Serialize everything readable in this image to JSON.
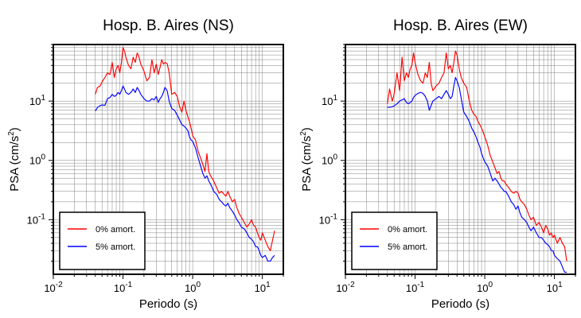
{
  "chart_data": [
    {
      "type": "line",
      "title": "Hosp. B. Aires (NS)",
      "xlabel": "Periodo (s)",
      "ylabel_main": "PSA (cm/s",
      "ylabel_sup": "2",
      "ylabel_close": ")",
      "xscale": "log",
      "yscale": "log",
      "xlim": [
        0.01,
        20
      ],
      "ylim": [
        0.012,
        90
      ],
      "grid": true,
      "legend_position": "bottom-left",
      "xtick_labels": [
        {
          "base": "10",
          "exp": "-2",
          "value": 0.01
        },
        {
          "base": "10",
          "exp": "-1",
          "value": 0.1
        },
        {
          "base": "10",
          "exp": "0",
          "value": 1
        },
        {
          "base": "10",
          "exp": "1",
          "value": 10
        }
      ],
      "ytick_labels": [
        {
          "base": "10",
          "exp": "-1",
          "value": 0.1
        },
        {
          "base": "10",
          "exp": "0",
          "value": 1
        },
        {
          "base": "10",
          "exp": "1",
          "value": 10
        }
      ],
      "series": [
        {
          "name": "0% amort.",
          "color": "#ff0000",
          "x": [
            0.04,
            0.043,
            0.047,
            0.05,
            0.055,
            0.06,
            0.065,
            0.07,
            0.075,
            0.08,
            0.085,
            0.09,
            0.095,
            0.1,
            0.105,
            0.11,
            0.12,
            0.13,
            0.14,
            0.15,
            0.16,
            0.17,
            0.18,
            0.2,
            0.22,
            0.24,
            0.26,
            0.28,
            0.3,
            0.32,
            0.34,
            0.36,
            0.38,
            0.4,
            0.43,
            0.46,
            0.5,
            0.55,
            0.6,
            0.65,
            0.7,
            0.75,
            0.8,
            0.85,
            0.9,
            0.95,
            1.0,
            1.1,
            1.2,
            1.3,
            1.4,
            1.5,
            1.6,
            1.7,
            1.8,
            1.9,
            2.0,
            2.2,
            2.4,
            2.6,
            2.8,
            3.0,
            3.2,
            3.4,
            3.7,
            4.0,
            4.3,
            4.6,
            5.0,
            5.5,
            6.0,
            6.5,
            7.0,
            7.5,
            8.0,
            8.5,
            9.0,
            9.5,
            10.0,
            11.0,
            12.0,
            13.0,
            14.0,
            15.0
          ],
          "y": [
            13,
            17,
            18,
            21,
            25,
            30,
            28,
            45,
            25,
            35,
            40,
            30,
            45,
            80,
            70,
            55,
            40,
            35,
            55,
            45,
            65,
            55,
            42,
            32,
            22,
            25,
            50,
            30,
            42,
            28,
            37,
            50,
            42,
            45,
            43,
            30,
            13,
            14,
            12,
            8,
            6.5,
            10,
            7,
            5.5,
            4.5,
            3.5,
            2.6,
            2.2,
            1.4,
            1.1,
            0.85,
            0.65,
            1.3,
            0.65,
            0.55,
            0.5,
            0.45,
            0.35,
            0.28,
            0.3,
            0.27,
            0.25,
            0.3,
            0.25,
            0.2,
            0.22,
            0.16,
            0.13,
            0.11,
            0.09,
            0.075,
            0.085,
            0.1,
            0.08,
            0.075,
            0.06,
            0.05,
            0.045,
            0.06,
            0.045,
            0.035,
            0.03,
            0.045,
            0.065
          ]
        },
        {
          "name": "5% amort.",
          "color": "#0000ff",
          "x": [
            0.04,
            0.043,
            0.047,
            0.05,
            0.055,
            0.06,
            0.065,
            0.07,
            0.075,
            0.08,
            0.085,
            0.09,
            0.095,
            0.1,
            0.105,
            0.11,
            0.12,
            0.13,
            0.14,
            0.15,
            0.16,
            0.17,
            0.18,
            0.2,
            0.22,
            0.24,
            0.26,
            0.28,
            0.3,
            0.32,
            0.34,
            0.36,
            0.38,
            0.4,
            0.43,
            0.46,
            0.5,
            0.55,
            0.6,
            0.65,
            0.7,
            0.75,
            0.8,
            0.85,
            0.9,
            0.95,
            1.0,
            1.1,
            1.2,
            1.3,
            1.4,
            1.5,
            1.6,
            1.7,
            1.8,
            1.9,
            2.0,
            2.2,
            2.4,
            2.6,
            2.8,
            3.0,
            3.2,
            3.4,
            3.7,
            4.0,
            4.3,
            4.6,
            5.0,
            5.5,
            6.0,
            6.5,
            7.0,
            7.5,
            8.0,
            8.5,
            9.0,
            9.5,
            10.0,
            11.0,
            12.0,
            13.0,
            14.0,
            15.0
          ],
          "y": [
            6.8,
            7.8,
            8.4,
            8.6,
            8.5,
            11,
            11.5,
            13,
            12,
            12.5,
            14,
            13,
            15,
            18,
            16,
            14,
            13,
            14,
            16,
            14,
            17,
            15,
            13,
            11,
            10,
            10,
            11,
            10.5,
            12,
            9.5,
            11,
            12,
            14,
            17,
            15,
            10,
            7.5,
            7,
            5.8,
            4.8,
            4,
            3.8,
            3.5,
            3.2,
            2.5,
            2.2,
            2.1,
            1.6,
            1.1,
            0.8,
            0.6,
            0.5,
            0.55,
            0.45,
            0.4,
            0.35,
            0.3,
            0.27,
            0.22,
            0.2,
            0.18,
            0.17,
            0.19,
            0.16,
            0.14,
            0.12,
            0.1,
            0.09,
            0.075,
            0.07,
            0.06,
            0.05,
            0.047,
            0.042,
            0.035,
            0.035,
            0.03,
            0.025,
            0.023,
            0.025,
            0.02,
            0.02,
            0.023,
            0.025
          ]
        }
      ]
    },
    {
      "type": "line",
      "title": "Hosp. B. Aires (EW)",
      "xlabel": "Periodo (s)",
      "ylabel_main": "PSA (cm/s",
      "ylabel_sup": "2",
      "ylabel_close": ")",
      "xscale": "log",
      "yscale": "log",
      "xlim": [
        0.01,
        20
      ],
      "ylim": [
        0.012,
        90
      ],
      "grid": true,
      "legend_position": "bottom-left",
      "xtick_labels": [
        {
          "base": "10",
          "exp": "-2",
          "value": 0.01
        },
        {
          "base": "10",
          "exp": "-1",
          "value": 0.1
        },
        {
          "base": "10",
          "exp": "0",
          "value": 1
        },
        {
          "base": "10",
          "exp": "1",
          "value": 10
        }
      ],
      "ytick_labels": [
        {
          "base": "10",
          "exp": "-1",
          "value": 0.1
        },
        {
          "base": "10",
          "exp": "0",
          "value": 1
        },
        {
          "base": "10",
          "exp": "1",
          "value": 10
        }
      ],
      "series": [
        {
          "name": "0% amort.",
          "color": "#ff0000",
          "x": [
            0.04,
            0.043,
            0.047,
            0.05,
            0.055,
            0.06,
            0.065,
            0.07,
            0.075,
            0.08,
            0.085,
            0.09,
            0.095,
            0.1,
            0.105,
            0.11,
            0.12,
            0.13,
            0.14,
            0.15,
            0.16,
            0.17,
            0.18,
            0.2,
            0.22,
            0.24,
            0.26,
            0.28,
            0.3,
            0.32,
            0.34,
            0.36,
            0.38,
            0.4,
            0.43,
            0.46,
            0.5,
            0.55,
            0.6,
            0.65,
            0.7,
            0.75,
            0.8,
            0.85,
            0.9,
            0.95,
            1.0,
            1.1,
            1.2,
            1.3,
            1.4,
            1.5,
            1.6,
            1.7,
            1.8,
            1.9,
            2.0,
            2.2,
            2.4,
            2.6,
            2.8,
            3.0,
            3.2,
            3.4,
            3.7,
            4.0,
            4.3,
            4.6,
            5.0,
            5.5,
            6.0,
            6.5,
            7.0,
            7.5,
            8.0,
            8.5,
            9.0,
            9.5,
            10.0,
            11.0,
            12.0,
            13.0,
            14.0,
            15.0
          ],
          "y": [
            9,
            16,
            10,
            13,
            30,
            15,
            55,
            22,
            30,
            25,
            35,
            40,
            65,
            45,
            35,
            28,
            22,
            20,
            30,
            25,
            45,
            20,
            15,
            18,
            20,
            25,
            30,
            65,
            35,
            40,
            30,
            45,
            70,
            60,
            35,
            25,
            20,
            17,
            10,
            7,
            6,
            5.5,
            4.5,
            4,
            3.5,
            3,
            2.5,
            1.8,
            1.2,
            0.95,
            0.75,
            0.6,
            0.65,
            0.5,
            0.45,
            0.45,
            0.4,
            0.35,
            0.3,
            0.28,
            0.3,
            0.28,
            0.22,
            0.2,
            0.18,
            0.15,
            0.12,
            0.1,
            0.11,
            0.08,
            0.09,
            0.075,
            0.06,
            0.08,
            0.07,
            0.055,
            0.06,
            0.05,
            0.055,
            0.04,
            0.05,
            0.04,
            0.035,
            0.02
          ]
        },
        {
          "name": "5% amort.",
          "color": "#0000ff",
          "x": [
            0.04,
            0.043,
            0.047,
            0.05,
            0.055,
            0.06,
            0.065,
            0.07,
            0.075,
            0.08,
            0.085,
            0.09,
            0.095,
            0.1,
            0.105,
            0.11,
            0.12,
            0.13,
            0.14,
            0.15,
            0.16,
            0.17,
            0.18,
            0.2,
            0.22,
            0.24,
            0.26,
            0.28,
            0.3,
            0.32,
            0.34,
            0.36,
            0.38,
            0.4,
            0.43,
            0.46,
            0.5,
            0.55,
            0.6,
            0.65,
            0.7,
            0.75,
            0.8,
            0.85,
            0.9,
            0.95,
            1.0,
            1.1,
            1.2,
            1.3,
            1.4,
            1.5,
            1.6,
            1.7,
            1.8,
            1.9,
            2.0,
            2.2,
            2.4,
            2.6,
            2.8,
            3.0,
            3.2,
            3.4,
            3.7,
            4.0,
            4.3,
            4.6,
            5.0,
            5.5,
            6.0,
            6.5,
            7.0,
            7.5,
            8.0,
            8.5,
            9.0,
            9.5,
            10.0,
            11.0,
            12.0,
            13.0,
            14.0,
            15.0
          ],
          "y": [
            7.8,
            7.9,
            8,
            8.3,
            9,
            10,
            10.5,
            11,
            9.5,
            9,
            9.5,
            10,
            11.5,
            12.5,
            13,
            13.5,
            14,
            13.5,
            12,
            10,
            7,
            8.5,
            10,
            11,
            12,
            11,
            13,
            15,
            13,
            11,
            12,
            18,
            25,
            22,
            17,
            11,
            6.5,
            5.5,
            4.5,
            3.5,
            3,
            2.5,
            2,
            1.7,
            1.3,
            1.1,
            0.95,
            0.8,
            0.6,
            0.45,
            0.5,
            0.45,
            0.4,
            0.35,
            0.33,
            0.3,
            0.3,
            0.25,
            0.2,
            0.18,
            0.15,
            0.17,
            0.13,
            0.11,
            0.1,
            0.09,
            0.075,
            0.065,
            0.075,
            0.06,
            0.05,
            0.05,
            0.045,
            0.04,
            0.038,
            0.035,
            0.03,
            0.03,
            0.025,
            0.022,
            0.02,
            0.016,
            0.013,
            0.013
          ]
        }
      ]
    }
  ]
}
